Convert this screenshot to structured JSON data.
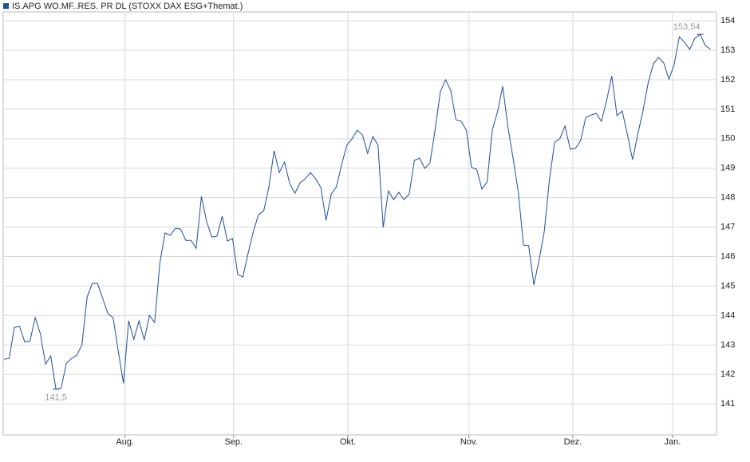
{
  "chart_data": {
    "type": "line",
    "series": [
      {
        "name": "IS.APG WO.MF..RES. PR DL (STOXX DAX ESG+Themat.)",
        "color": "#1f4e9c",
        "values": [
          142.52,
          142.54,
          143.6,
          143.63,
          143.1,
          143.13,
          143.93,
          143.38,
          142.35,
          142.63,
          141.5,
          141.53,
          142.38,
          142.54,
          142.65,
          143.0,
          144.63,
          145.09,
          145.09,
          144.58,
          144.06,
          143.93,
          142.79,
          141.7,
          143.82,
          143.19,
          143.82,
          143.17,
          144.0,
          143.76,
          145.77,
          146.8,
          146.72,
          146.96,
          146.93,
          146.55,
          146.55,
          146.28,
          148.04,
          147.2,
          146.66,
          146.69,
          147.37,
          146.53,
          146.61,
          145.39,
          145.31,
          146.12,
          146.85,
          147.42,
          147.55,
          148.37,
          149.59,
          148.85,
          149.21,
          148.48,
          148.15,
          148.5,
          148.64,
          148.85,
          148.64,
          148.34,
          147.23,
          148.12,
          148.37,
          149.13,
          149.78,
          150.0,
          150.29,
          150.13,
          149.5,
          150.07,
          149.78,
          146.99,
          148.23,
          147.93,
          148.18,
          147.93,
          148.12,
          149.26,
          149.34,
          148.99,
          149.18,
          150.32,
          151.59,
          152.0,
          151.64,
          150.64,
          150.59,
          150.29,
          149.02,
          148.96,
          148.29,
          148.53,
          150.29,
          150.91,
          151.78,
          150.4,
          149.34,
          148.2,
          146.39,
          146.37,
          145.04,
          145.88,
          146.85,
          148.61,
          149.88,
          150.0,
          150.43,
          149.64,
          149.67,
          149.94,
          150.72,
          150.8,
          150.86,
          150.59,
          151.29,
          152.13,
          150.78,
          150.94,
          150.15,
          149.29,
          150.15,
          150.94,
          151.89,
          152.54,
          152.76,
          152.57,
          152.02,
          152.51,
          153.46,
          153.27,
          153.03,
          153.41,
          153.54,
          153.16,
          153.03
        ]
      }
    ],
    "xlim": [
      0,
      137
    ],
    "xticks": [
      {
        "value": 23.3,
        "label": "Aug."
      },
      {
        "value": 44.2,
        "label": "Sep."
      },
      {
        "value": 66.2,
        "label": "Okt."
      },
      {
        "value": 89.5,
        "label": "Nov."
      },
      {
        "value": 109.5,
        "label": "Dez."
      },
      {
        "value": 128.7,
        "label": "Jan."
      }
    ],
    "ylim": [
      139.95,
      154.3
    ],
    "yticks": [
      141,
      142,
      143,
      144,
      145,
      146,
      147,
      148,
      149,
      150,
      151,
      152,
      153,
      154
    ],
    "grid": true,
    "annotations": [
      {
        "x": 10,
        "value": 141.5,
        "label": "141,5"
      },
      {
        "x": 134,
        "value": 153.54,
        "label": "153,54"
      }
    ]
  }
}
